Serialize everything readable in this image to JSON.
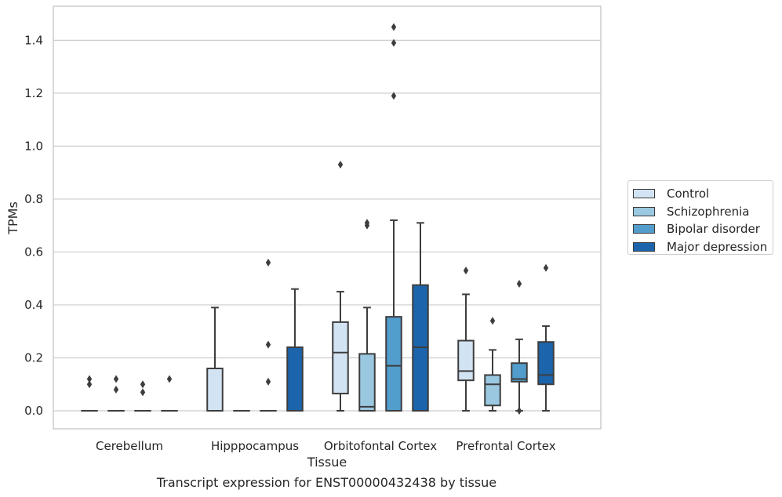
{
  "caption": "Transcript expression for ENST00000432438 by tissue",
  "chart_data": {
    "type": "box",
    "xlabel": "Tissue",
    "ylabel": "TPMs",
    "ylim": [
      -0.07,
      1.53
    ],
    "yticks": [
      0.0,
      0.2,
      0.4,
      0.6,
      0.8,
      1.0,
      1.2,
      1.4
    ],
    "ytick_labels": [
      "0.0",
      "0.2",
      "0.4",
      "0.6",
      "0.8",
      "1.0",
      "1.2",
      "1.4"
    ],
    "grid": "horizontal",
    "legend_position": "right",
    "categories": [
      "Cerebellum",
      "Hipppocampus",
      "Orbitofontal Cortex",
      "Prefrontal Cortex"
    ],
    "series": [
      {
        "name": "Control",
        "color": "#d2e3f3",
        "boxes": [
          {
            "q1": 0,
            "median": 0,
            "q3": 0,
            "whisker_low": 0,
            "whisker_high": 0,
            "outliers": [
              0.1,
              0.12
            ]
          },
          {
            "q1": 0,
            "median": 0,
            "q3": 0.16,
            "whisker_low": 0,
            "whisker_high": 0.39,
            "outliers": []
          },
          {
            "q1": 0.065,
            "median": 0.22,
            "q3": 0.335,
            "whisker_low": 0,
            "whisker_high": 0.45,
            "outliers": [
              0.93
            ]
          },
          {
            "q1": 0.115,
            "median": 0.15,
            "q3": 0.265,
            "whisker_low": 0,
            "whisker_high": 0.44,
            "outliers": [
              0.53
            ]
          }
        ]
      },
      {
        "name": "Schizophrenia",
        "color": "#9ac8e0",
        "boxes": [
          {
            "q1": 0,
            "median": 0,
            "q3": 0,
            "whisker_low": 0,
            "whisker_high": 0,
            "outliers": [
              0.08,
              0.12
            ]
          },
          {
            "q1": 0,
            "median": 0,
            "q3": 0,
            "whisker_low": 0,
            "whisker_high": 0,
            "outliers": []
          },
          {
            "q1": 0,
            "median": 0.015,
            "q3": 0.215,
            "whisker_low": 0,
            "whisker_high": 0.39,
            "outliers": [
              0.7,
              0.71
            ]
          },
          {
            "q1": 0.02,
            "median": 0.1,
            "q3": 0.135,
            "whisker_low": 0,
            "whisker_high": 0.23,
            "outliers": [
              0.34
            ]
          }
        ]
      },
      {
        "name": "Bipolar disorder",
        "color": "#529dcc",
        "boxes": [
          {
            "q1": 0,
            "median": 0,
            "q3": 0,
            "whisker_low": 0,
            "whisker_high": 0,
            "outliers": [
              0.07,
              0.1
            ]
          },
          {
            "q1": 0,
            "median": 0,
            "q3": 0,
            "whisker_low": 0,
            "whisker_high": 0,
            "outliers": [
              0.11,
              0.25,
              0.56
            ]
          },
          {
            "q1": 0,
            "median": 0.17,
            "q3": 0.355,
            "whisker_low": 0,
            "whisker_high": 0.72,
            "outliers": [
              1.19,
              1.39,
              1.45
            ]
          },
          {
            "q1": 0.11,
            "median": 0.12,
            "q3": 0.18,
            "whisker_low": 0,
            "whisker_high": 0.27,
            "outliers": [
              0.0,
              0.48
            ]
          }
        ]
      },
      {
        "name": "Major depression",
        "color": "#1c64ab",
        "boxes": [
          {
            "q1": 0,
            "median": 0,
            "q3": 0,
            "whisker_low": 0,
            "whisker_high": 0,
            "outliers": [
              0.12
            ]
          },
          {
            "q1": 0,
            "median": 0,
            "q3": 0.24,
            "whisker_low": 0,
            "whisker_high": 0.46,
            "outliers": []
          },
          {
            "q1": 0,
            "median": 0.24,
            "q3": 0.475,
            "whisker_low": 0,
            "whisker_high": 0.71,
            "outliers": []
          },
          {
            "q1": 0.1,
            "median": 0.135,
            "q3": 0.26,
            "whisker_low": 0,
            "whisker_high": 0.32,
            "outliers": [
              0.54
            ]
          }
        ]
      }
    ]
  }
}
